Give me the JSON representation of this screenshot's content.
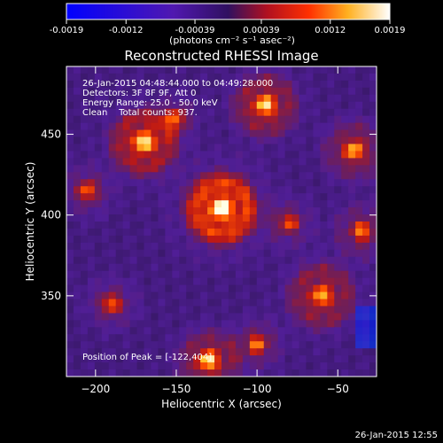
{
  "colorbar": {
    "tick_labels": [
      "-0.0019",
      "-0.0012",
      "-0.00039",
      "0.00039",
      "0.0012",
      "0.0019"
    ],
    "tick_values": [
      -0.0019,
      -0.0012,
      -0.00039,
      0.00039,
      0.0012,
      0.0019
    ],
    "range": [
      -0.0019,
      0.0019
    ],
    "unit_label": "(photons cm⁻² s⁻¹ asec⁻²)"
  },
  "chart_data": {
    "type": "heatmap",
    "title": "Reconstructed RHESSI Image",
    "xlabel": "Heliocentric X (arcsec)",
    "ylabel": "Heliocentric Y (arcsec)",
    "xlim": [
      -218,
      -26
    ],
    "ylim": [
      300,
      492
    ],
    "x_ticks": [
      -200,
      -150,
      -100,
      -50
    ],
    "x_tick_labels": [
      "−200",
      "−150",
      "−100",
      "−50"
    ],
    "y_ticks": [
      350,
      400,
      450
    ],
    "y_tick_labels": [
      "350",
      "400",
      "450"
    ],
    "peak": [
      -122,
      404
    ],
    "grid": false,
    "colormap": [
      "#0000ff",
      "#5a1cc8",
      "#3a1870",
      "#7a2470",
      "#cc2010",
      "#ff6a00",
      "#ffd040",
      "#ffffff"
    ]
  },
  "annotations": {
    "time_range": "26-Jan-2015 04:48:44.000 to 04:49:28.000",
    "detectors": "Detectors: 3F 8F 9F, Att 0",
    "energy_range": "Energy Range: 25.0 - 50.0 keV",
    "method": "Clean    Total counts: 937.",
    "peak_label": "Position of Peak = [-122,404]"
  },
  "timestamp": "26-Jan-2015 12:55"
}
